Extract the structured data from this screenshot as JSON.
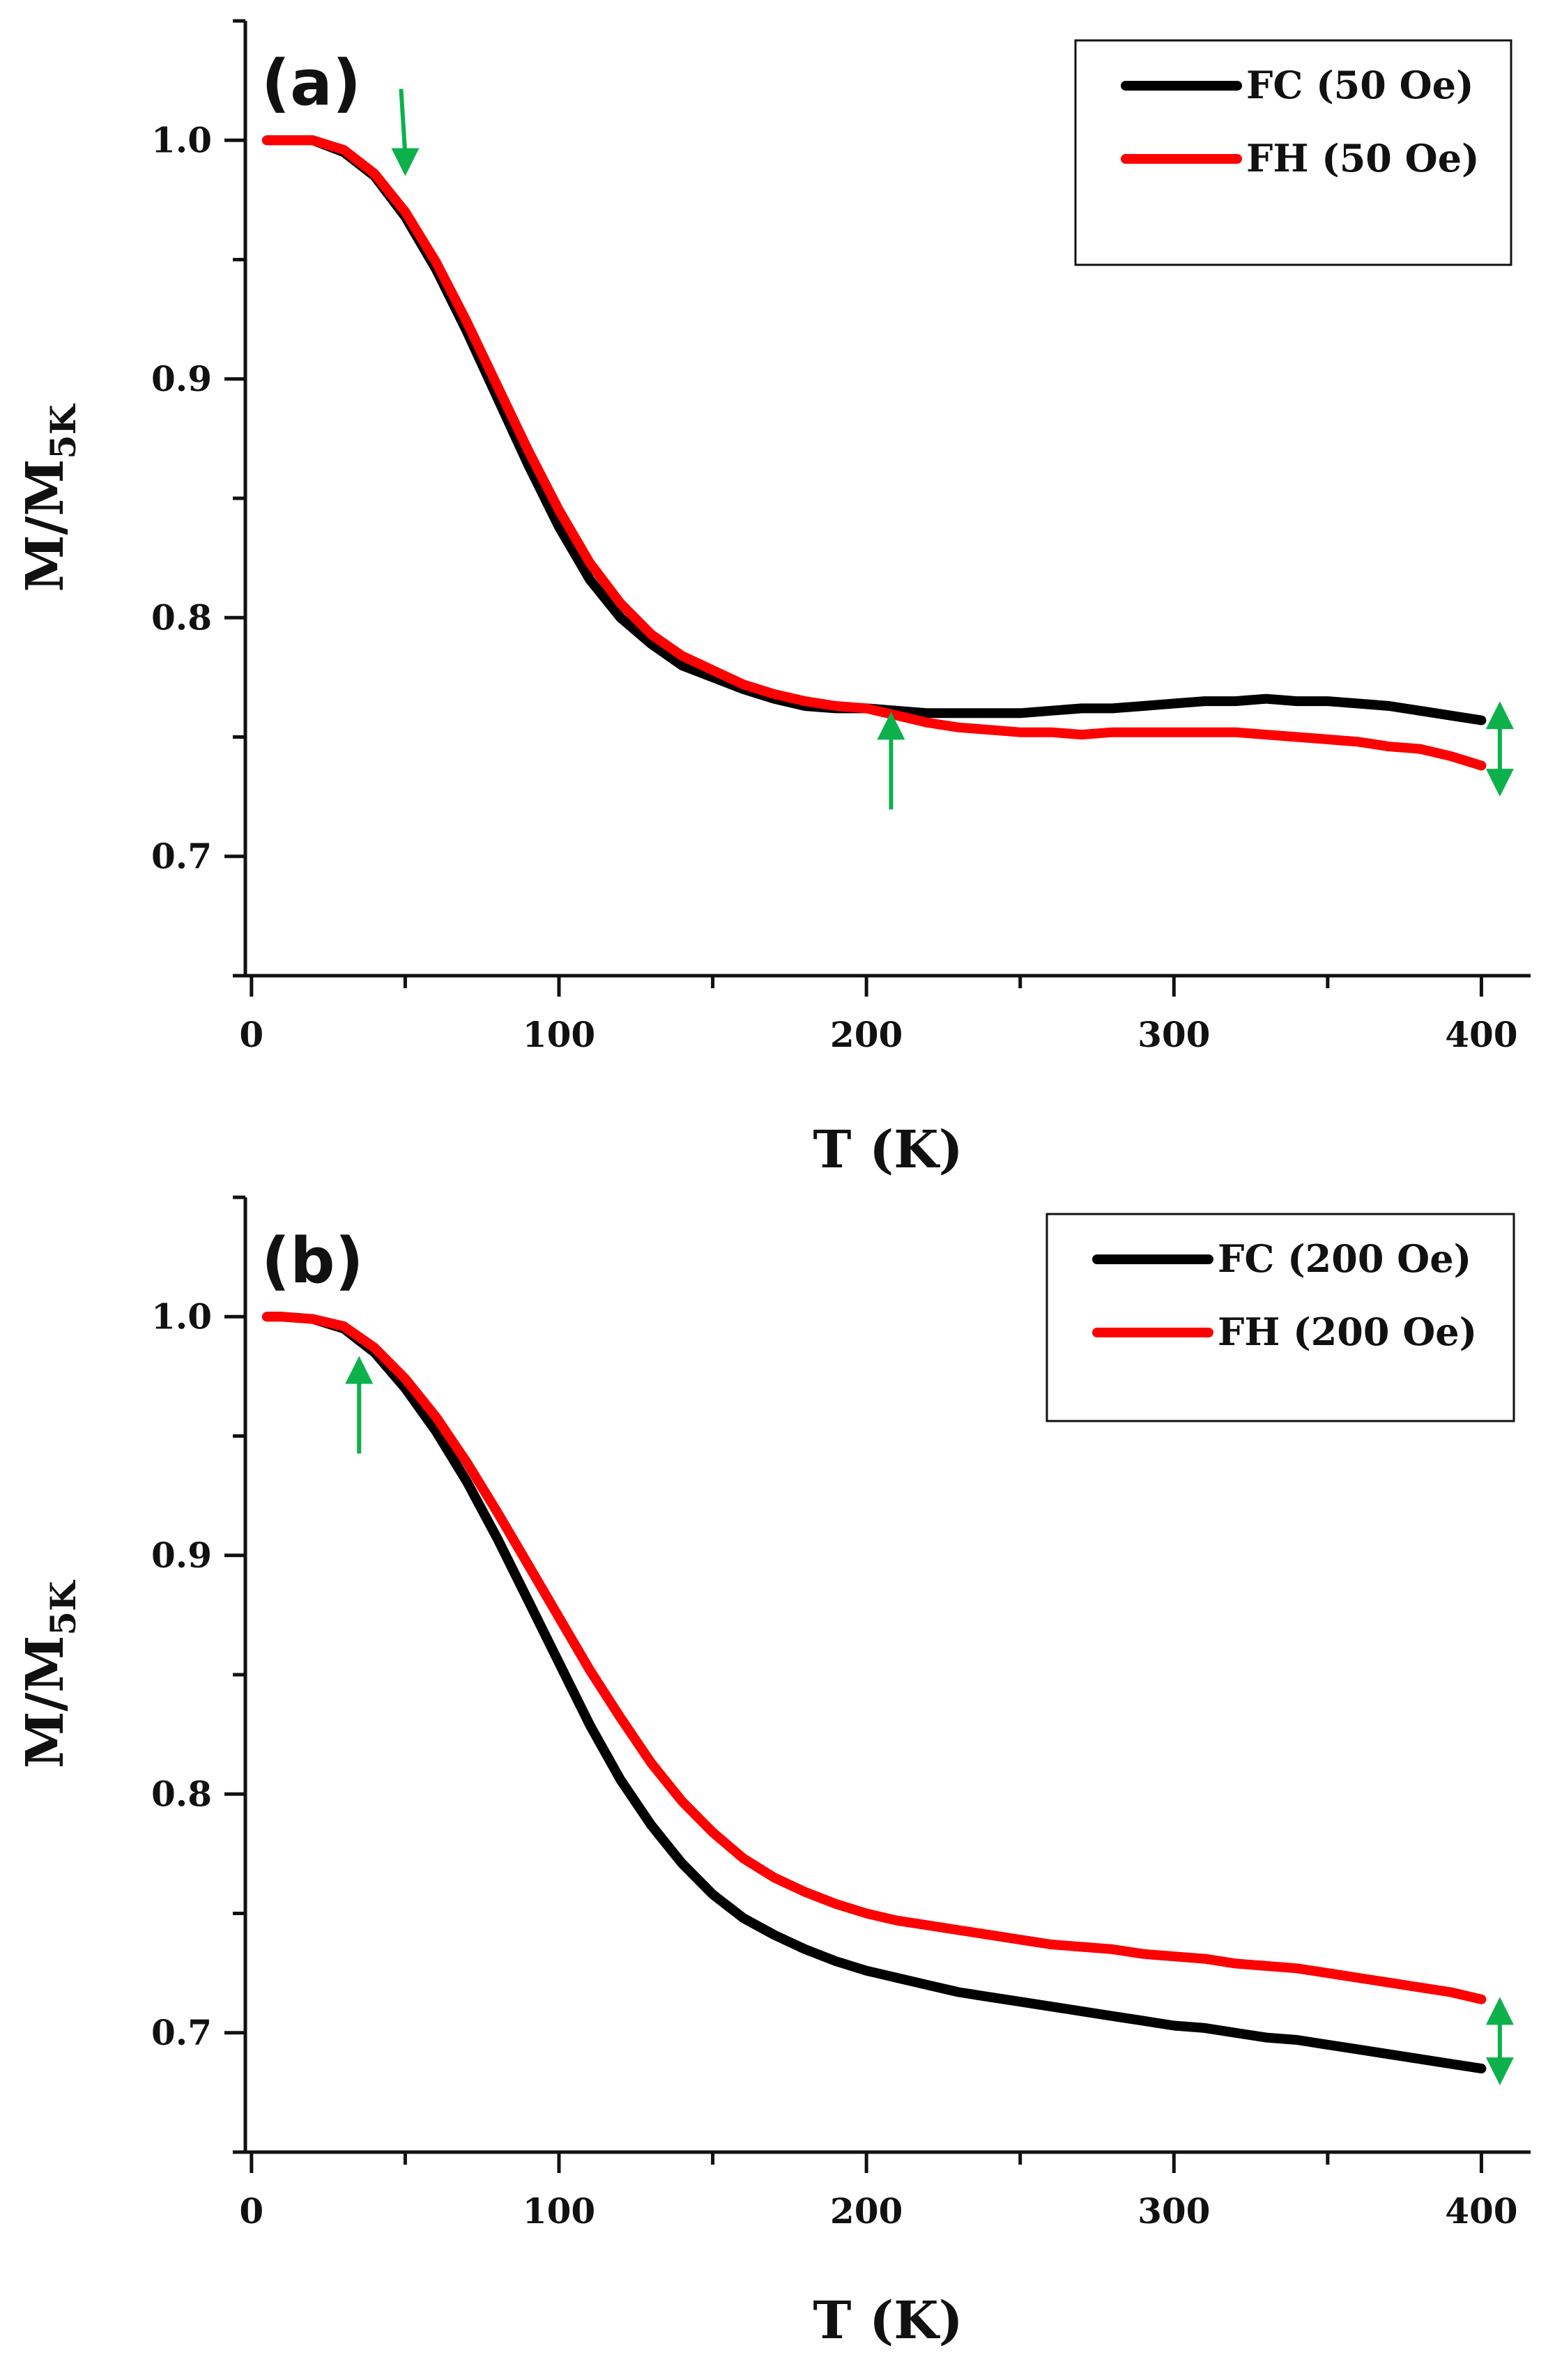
{
  "figure_title": "",
  "chart_data": [
    {
      "panel": "(a)",
      "type": "line",
      "xlabel": "T (K)",
      "ylabel": "M/M",
      "ylabel_sub": "5K",
      "xlim": [
        -2,
        416
      ],
      "ylim": [
        0.65,
        1.05
      ],
      "xticks": [
        0,
        100,
        200,
        300,
        400
      ],
      "yticks": [
        0.7,
        0.8,
        0.9,
        1.0
      ],
      "ytick_labels": [
        "0.7",
        "0.8",
        "0.9",
        "1.0"
      ],
      "legend": "top-right",
      "series": [
        {
          "name": "FC (50 Oe)",
          "color": "#000000",
          "x": [
            5,
            10,
            20,
            30,
            40,
            50,
            60,
            70,
            80,
            90,
            100,
            110,
            120,
            130,
            140,
            150,
            160,
            170,
            180,
            190,
            200,
            210,
            220,
            230,
            240,
            250,
            260,
            270,
            280,
            290,
            300,
            310,
            320,
            330,
            340,
            350,
            360,
            370,
            380,
            390,
            400
          ],
          "y": [
            1.0,
            1.0,
            1.0,
            0.995,
            0.985,
            0.968,
            0.946,
            0.92,
            0.892,
            0.864,
            0.838,
            0.816,
            0.8,
            0.789,
            0.78,
            0.775,
            0.77,
            0.766,
            0.763,
            0.762,
            0.762,
            0.761,
            0.76,
            0.76,
            0.76,
            0.76,
            0.761,
            0.762,
            0.762,
            0.763,
            0.764,
            0.765,
            0.765,
            0.766,
            0.765,
            0.765,
            0.764,
            0.763,
            0.761,
            0.759,
            0.757
          ]
        },
        {
          "name": "FH (50 Oe)",
          "color": "#ff0000",
          "x": [
            5,
            10,
            20,
            30,
            40,
            50,
            60,
            70,
            80,
            90,
            100,
            110,
            120,
            130,
            140,
            150,
            160,
            170,
            180,
            190,
            200,
            210,
            220,
            230,
            240,
            250,
            260,
            270,
            280,
            290,
            300,
            310,
            320,
            330,
            340,
            350,
            360,
            370,
            380,
            390,
            400
          ],
          "y": [
            1.0,
            1.0,
            1.0,
            0.996,
            0.986,
            0.97,
            0.949,
            0.924,
            0.897,
            0.87,
            0.845,
            0.823,
            0.806,
            0.793,
            0.784,
            0.778,
            0.772,
            0.768,
            0.765,
            0.763,
            0.762,
            0.759,
            0.756,
            0.754,
            0.753,
            0.752,
            0.752,
            0.751,
            0.752,
            0.752,
            0.752,
            0.752,
            0.752,
            0.751,
            0.75,
            0.749,
            0.748,
            0.746,
            0.745,
            0.742,
            0.738
          ]
        }
      ],
      "annotations": [
        {
          "type": "arrow",
          "direction": "down",
          "x": 50,
          "y": 0.985
        },
        {
          "type": "arrow",
          "direction": "up",
          "x": 208,
          "y": 0.762
        },
        {
          "type": "double-arrow",
          "x": 406,
          "y_from": 0.765,
          "y_to": 0.725
        }
      ],
      "annotation_color": "#0db14b"
    },
    {
      "panel": "(b)",
      "type": "line",
      "xlabel": "T (K)",
      "ylabel": "M/M",
      "ylabel_sub": "5K",
      "xlim": [
        -2,
        416
      ],
      "ylim": [
        0.65,
        1.05
      ],
      "xticks": [
        0,
        100,
        200,
        300,
        400
      ],
      "yticks": [
        0.7,
        0.8,
        0.9,
        1.0
      ],
      "ytick_labels": [
        "0.7",
        "0.8",
        "0.9",
        "1.0"
      ],
      "legend": "top-right",
      "series": [
        {
          "name": "FC (200 Oe)",
          "color": "#000000",
          "x": [
            5,
            10,
            20,
            30,
            40,
            50,
            60,
            70,
            80,
            90,
            100,
            110,
            120,
            130,
            140,
            150,
            160,
            170,
            180,
            190,
            200,
            210,
            220,
            230,
            240,
            250,
            260,
            270,
            280,
            290,
            300,
            310,
            320,
            330,
            340,
            350,
            360,
            370,
            380,
            390,
            400
          ],
          "y": [
            1.0,
            1.0,
            0.999,
            0.995,
            0.985,
            0.97,
            0.952,
            0.931,
            0.907,
            0.881,
            0.855,
            0.829,
            0.806,
            0.787,
            0.771,
            0.758,
            0.748,
            0.741,
            0.735,
            0.73,
            0.726,
            0.723,
            0.72,
            0.717,
            0.715,
            0.713,
            0.711,
            0.709,
            0.707,
            0.705,
            0.703,
            0.702,
            0.7,
            0.698,
            0.697,
            0.695,
            0.693,
            0.691,
            0.689,
            0.687,
            0.685
          ]
        },
        {
          "name": "FH (200 Oe)",
          "color": "#ff0000",
          "x": [
            5,
            10,
            20,
            30,
            40,
            50,
            60,
            70,
            80,
            90,
            100,
            110,
            120,
            130,
            140,
            150,
            160,
            170,
            180,
            190,
            200,
            210,
            220,
            230,
            240,
            250,
            260,
            270,
            280,
            290,
            300,
            310,
            320,
            330,
            340,
            350,
            360,
            370,
            380,
            390,
            400
          ],
          "y": [
            1.0,
            1.0,
            0.999,
            0.996,
            0.987,
            0.974,
            0.958,
            0.939,
            0.918,
            0.896,
            0.874,
            0.852,
            0.832,
            0.813,
            0.797,
            0.784,
            0.773,
            0.765,
            0.759,
            0.754,
            0.75,
            0.747,
            0.745,
            0.743,
            0.741,
            0.739,
            0.737,
            0.736,
            0.735,
            0.733,
            0.732,
            0.731,
            0.729,
            0.728,
            0.727,
            0.725,
            0.723,
            0.721,
            0.719,
            0.717,
            0.714
          ]
        }
      ],
      "annotations": [
        {
          "type": "arrow",
          "direction": "up",
          "x": 35,
          "y": 0.985
        },
        {
          "type": "double-arrow",
          "x": 406,
          "y_from": 0.715,
          "y_to": 0.678
        }
      ],
      "annotation_color": "#0db14b"
    }
  ]
}
